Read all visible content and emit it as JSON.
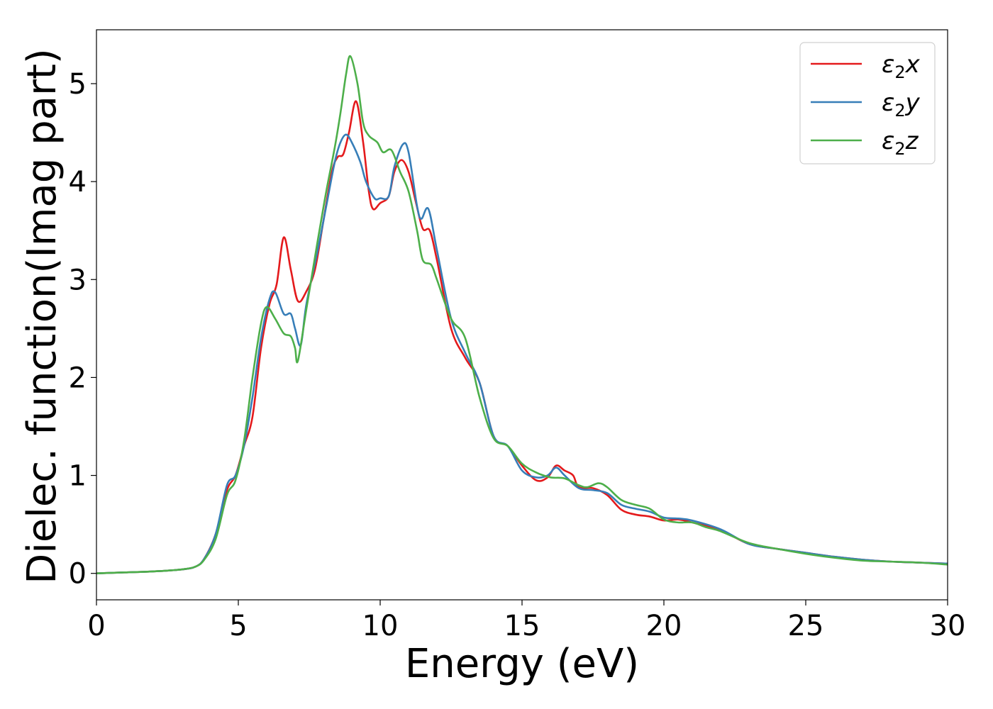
{
  "chart_data": {
    "type": "line",
    "title": "",
    "xlabel": "Energy (eV)",
    "ylabel": "Dielec. function(Imag part)",
    "xlim": [
      0,
      30
    ],
    "ylim": [
      -0.27,
      5.55
    ],
    "xticks": [
      0,
      5,
      10,
      15,
      20,
      25,
      30
    ],
    "yticks": [
      0,
      1,
      2,
      3,
      4,
      5
    ],
    "grid": false,
    "legend_position": "top-right",
    "series": [
      {
        "name": "ε2x",
        "legend_base": "ε",
        "legend_sub": "2",
        "legend_suffix": "x",
        "color": "#e41a1c",
        "points": [
          [
            0,
            0.0
          ],
          [
            1,
            0.01
          ],
          [
            2,
            0.02
          ],
          [
            3,
            0.04
          ],
          [
            3.5,
            0.07
          ],
          [
            3.8,
            0.15
          ],
          [
            4.2,
            0.4
          ],
          [
            4.6,
            0.85
          ],
          [
            4.9,
            1.0
          ],
          [
            5.2,
            1.3
          ],
          [
            5.5,
            1.6
          ],
          [
            5.8,
            2.3
          ],
          [
            6.1,
            2.75
          ],
          [
            6.35,
            2.95
          ],
          [
            6.6,
            3.43
          ],
          [
            6.85,
            3.1
          ],
          [
            7.1,
            2.78
          ],
          [
            7.4,
            2.88
          ],
          [
            7.7,
            3.1
          ],
          [
            8.0,
            3.6
          ],
          [
            8.3,
            4.1
          ],
          [
            8.5,
            4.25
          ],
          [
            8.7,
            4.28
          ],
          [
            8.9,
            4.5
          ],
          [
            9.15,
            4.82
          ],
          [
            9.4,
            4.4
          ],
          [
            9.6,
            3.9
          ],
          [
            9.75,
            3.72
          ],
          [
            10.0,
            3.78
          ],
          [
            10.3,
            3.85
          ],
          [
            10.5,
            4.1
          ],
          [
            10.75,
            4.22
          ],
          [
            11.0,
            4.1
          ],
          [
            11.25,
            3.8
          ],
          [
            11.5,
            3.52
          ],
          [
            11.75,
            3.5
          ],
          [
            12.0,
            3.2
          ],
          [
            12.5,
            2.5
          ],
          [
            13.0,
            2.2
          ],
          [
            13.5,
            1.95
          ],
          [
            14.0,
            1.4
          ],
          [
            14.5,
            1.3
          ],
          [
            15.0,
            1.1
          ],
          [
            15.5,
            0.95
          ],
          [
            15.9,
            0.98
          ],
          [
            16.2,
            1.1
          ],
          [
            16.5,
            1.05
          ],
          [
            16.8,
            1.0
          ],
          [
            17.0,
            0.88
          ],
          [
            17.5,
            0.87
          ],
          [
            18.0,
            0.8
          ],
          [
            18.5,
            0.65
          ],
          [
            19.0,
            0.6
          ],
          [
            19.5,
            0.58
          ],
          [
            20.0,
            0.54
          ],
          [
            20.5,
            0.55
          ],
          [
            21.0,
            0.52
          ],
          [
            22.0,
            0.44
          ],
          [
            23.0,
            0.3
          ],
          [
            24.0,
            0.25
          ],
          [
            25.0,
            0.21
          ],
          [
            26.0,
            0.17
          ],
          [
            27.0,
            0.14
          ],
          [
            28.0,
            0.12
          ],
          [
            29.0,
            0.11
          ],
          [
            30.0,
            0.1
          ]
        ]
      },
      {
        "name": "ε2y",
        "legend_base": "ε",
        "legend_sub": "2",
        "legend_suffix": "y",
        "color": "#377eb8",
        "points": [
          [
            0,
            0.0
          ],
          [
            1,
            0.01
          ],
          [
            2,
            0.02
          ],
          [
            3,
            0.04
          ],
          [
            3.5,
            0.07
          ],
          [
            3.8,
            0.15
          ],
          [
            4.2,
            0.4
          ],
          [
            4.6,
            0.9
          ],
          [
            4.9,
            1.0
          ],
          [
            5.2,
            1.3
          ],
          [
            5.5,
            1.8
          ],
          [
            5.8,
            2.4
          ],
          [
            6.1,
            2.8
          ],
          [
            6.3,
            2.87
          ],
          [
            6.6,
            2.65
          ],
          [
            6.85,
            2.65
          ],
          [
            7.0,
            2.5
          ],
          [
            7.2,
            2.33
          ],
          [
            7.4,
            2.75
          ],
          [
            7.8,
            3.3
          ],
          [
            8.1,
            3.75
          ],
          [
            8.4,
            4.2
          ],
          [
            8.6,
            4.4
          ],
          [
            8.8,
            4.48
          ],
          [
            9.0,
            4.4
          ],
          [
            9.3,
            4.2
          ],
          [
            9.5,
            4.0
          ],
          [
            9.8,
            3.83
          ],
          [
            10.0,
            3.83
          ],
          [
            10.3,
            3.85
          ],
          [
            10.5,
            4.15
          ],
          [
            10.8,
            4.38
          ],
          [
            11.0,
            4.3
          ],
          [
            11.3,
            3.75
          ],
          [
            11.45,
            3.62
          ],
          [
            11.7,
            3.72
          ],
          [
            12.0,
            3.3
          ],
          [
            12.5,
            2.6
          ],
          [
            13.0,
            2.25
          ],
          [
            13.5,
            1.95
          ],
          [
            14.0,
            1.4
          ],
          [
            14.5,
            1.3
          ],
          [
            15.0,
            1.05
          ],
          [
            15.5,
            0.98
          ],
          [
            15.9,
            1.0
          ],
          [
            16.2,
            1.08
          ],
          [
            16.5,
            1.0
          ],
          [
            17.0,
            0.87
          ],
          [
            17.5,
            0.85
          ],
          [
            18.0,
            0.82
          ],
          [
            18.5,
            0.7
          ],
          [
            19.0,
            0.66
          ],
          [
            19.5,
            0.63
          ],
          [
            20.0,
            0.57
          ],
          [
            20.5,
            0.56
          ],
          [
            21.0,
            0.54
          ],
          [
            22.0,
            0.45
          ],
          [
            23.0,
            0.3
          ],
          [
            24.0,
            0.25
          ],
          [
            25.0,
            0.21
          ],
          [
            26.0,
            0.17
          ],
          [
            27.0,
            0.14
          ],
          [
            28.0,
            0.12
          ],
          [
            29.0,
            0.11
          ],
          [
            30.0,
            0.1
          ]
        ]
      },
      {
        "name": "ε2z",
        "legend_base": "ε",
        "legend_sub": "2",
        "legend_suffix": "z",
        "color": "#4daf4a",
        "points": [
          [
            0,
            0.0
          ],
          [
            1,
            0.01
          ],
          [
            2,
            0.02
          ],
          [
            3,
            0.04
          ],
          [
            3.5,
            0.07
          ],
          [
            3.8,
            0.14
          ],
          [
            4.2,
            0.35
          ],
          [
            4.6,
            0.8
          ],
          [
            4.9,
            0.95
          ],
          [
            5.2,
            1.35
          ],
          [
            5.5,
            2.0
          ],
          [
            5.8,
            2.55
          ],
          [
            6.0,
            2.72
          ],
          [
            6.3,
            2.6
          ],
          [
            6.6,
            2.45
          ],
          [
            6.85,
            2.42
          ],
          [
            7.0,
            2.3
          ],
          [
            7.1,
            2.17
          ],
          [
            7.4,
            2.7
          ],
          [
            7.8,
            3.4
          ],
          [
            8.1,
            3.9
          ],
          [
            8.4,
            4.35
          ],
          [
            8.6,
            4.7
          ],
          [
            8.8,
            5.1
          ],
          [
            8.95,
            5.28
          ],
          [
            9.2,
            5.0
          ],
          [
            9.4,
            4.6
          ],
          [
            9.6,
            4.47
          ],
          [
            9.9,
            4.4
          ],
          [
            10.1,
            4.3
          ],
          [
            10.4,
            4.32
          ],
          [
            10.7,
            4.1
          ],
          [
            11.0,
            3.9
          ],
          [
            11.3,
            3.5
          ],
          [
            11.5,
            3.2
          ],
          [
            11.8,
            3.15
          ],
          [
            12.0,
            3.0
          ],
          [
            12.5,
            2.6
          ],
          [
            13.0,
            2.4
          ],
          [
            13.5,
            1.8
          ],
          [
            14.0,
            1.38
          ],
          [
            14.5,
            1.3
          ],
          [
            15.0,
            1.12
          ],
          [
            15.5,
            1.03
          ],
          [
            16.0,
            0.98
          ],
          [
            16.5,
            0.97
          ],
          [
            17.0,
            0.9
          ],
          [
            17.3,
            0.88
          ],
          [
            17.7,
            0.92
          ],
          [
            18.0,
            0.88
          ],
          [
            18.5,
            0.75
          ],
          [
            19.0,
            0.7
          ],
          [
            19.5,
            0.66
          ],
          [
            20.0,
            0.55
          ],
          [
            20.5,
            0.52
          ],
          [
            21.0,
            0.52
          ],
          [
            21.5,
            0.47
          ],
          [
            22.0,
            0.43
          ],
          [
            23.0,
            0.31
          ],
          [
            24.0,
            0.25
          ],
          [
            25.0,
            0.2
          ],
          [
            26.0,
            0.16
          ],
          [
            27.0,
            0.13
          ],
          [
            28.0,
            0.12
          ],
          [
            29.0,
            0.11
          ],
          [
            30.0,
            0.09
          ]
        ]
      }
    ]
  }
}
